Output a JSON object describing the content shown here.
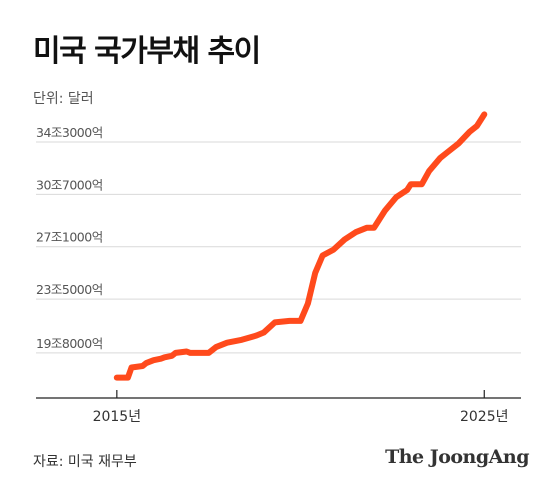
{
  "header": {
    "title": "미국 국가부채 추이",
    "unit": "단위: 달러"
  },
  "footer": {
    "source": "자료: 미국 재무부",
    "logo": "The JoongAng"
  },
  "colors": {
    "line": "#ff4a1c",
    "grid": "#d9d9d9",
    "axis": "#222222"
  },
  "chart_data": {
    "type": "line",
    "title": "미국 국가부채 추이",
    "ylabel": "단위: 달러",
    "xlabel": "",
    "x_ticks": [
      {
        "label": "2015년",
        "x": 2015.0
      },
      {
        "label": "2025년",
        "x": 2025.0
      }
    ],
    "y_ticks": [
      {
        "label": "19조8000억",
        "value": 19.8
      },
      {
        "label": "23조5000억",
        "value": 23.5
      },
      {
        "label": "27조1000억",
        "value": 27.1
      },
      {
        "label": "30조7000억",
        "value": 30.7
      },
      {
        "label": "34조3000억",
        "value": 34.3
      }
    ],
    "ylim": [
      16.7,
      34.3
    ],
    "xlim": [
      2012.8,
      2026.0
    ],
    "grid": true,
    "series": [
      {
        "values": [
          [
            2015.0,
            18.1
          ],
          [
            2015.3,
            18.1
          ],
          [
            2015.4,
            18.8
          ],
          [
            2015.7,
            18.9
          ],
          [
            2015.8,
            19.1
          ],
          [
            2016.0,
            19.3
          ],
          [
            2016.2,
            19.4
          ],
          [
            2016.3,
            19.5
          ],
          [
            2016.5,
            19.6
          ],
          [
            2016.6,
            19.8
          ],
          [
            2016.9,
            19.9
          ],
          [
            2017.0,
            19.8
          ],
          [
            2017.5,
            19.8
          ],
          [
            2017.7,
            20.2
          ],
          [
            2018.0,
            20.5
          ],
          [
            2018.4,
            20.7
          ],
          [
            2018.8,
            21.0
          ],
          [
            2019.0,
            21.2
          ],
          [
            2019.3,
            21.9
          ],
          [
            2019.7,
            22.0
          ],
          [
            2020.0,
            22.0
          ],
          [
            2020.2,
            23.2
          ],
          [
            2020.4,
            25.3
          ],
          [
            2020.6,
            26.5
          ],
          [
            2020.9,
            26.9
          ],
          [
            2021.2,
            27.6
          ],
          [
            2021.5,
            28.1
          ],
          [
            2021.8,
            28.4
          ],
          [
            2022.0,
            28.4
          ],
          [
            2022.3,
            29.6
          ],
          [
            2022.6,
            30.5
          ],
          [
            2022.9,
            31.0
          ],
          [
            2023.0,
            31.4
          ],
          [
            2023.3,
            31.4
          ],
          [
            2023.5,
            32.3
          ],
          [
            2023.8,
            33.2
          ],
          [
            2024.0,
            33.6
          ],
          [
            2024.3,
            34.2
          ],
          [
            2024.6,
            35.0
          ],
          [
            2024.8,
            35.4
          ],
          [
            2025.0,
            36.2
          ]
        ]
      }
    ]
  }
}
